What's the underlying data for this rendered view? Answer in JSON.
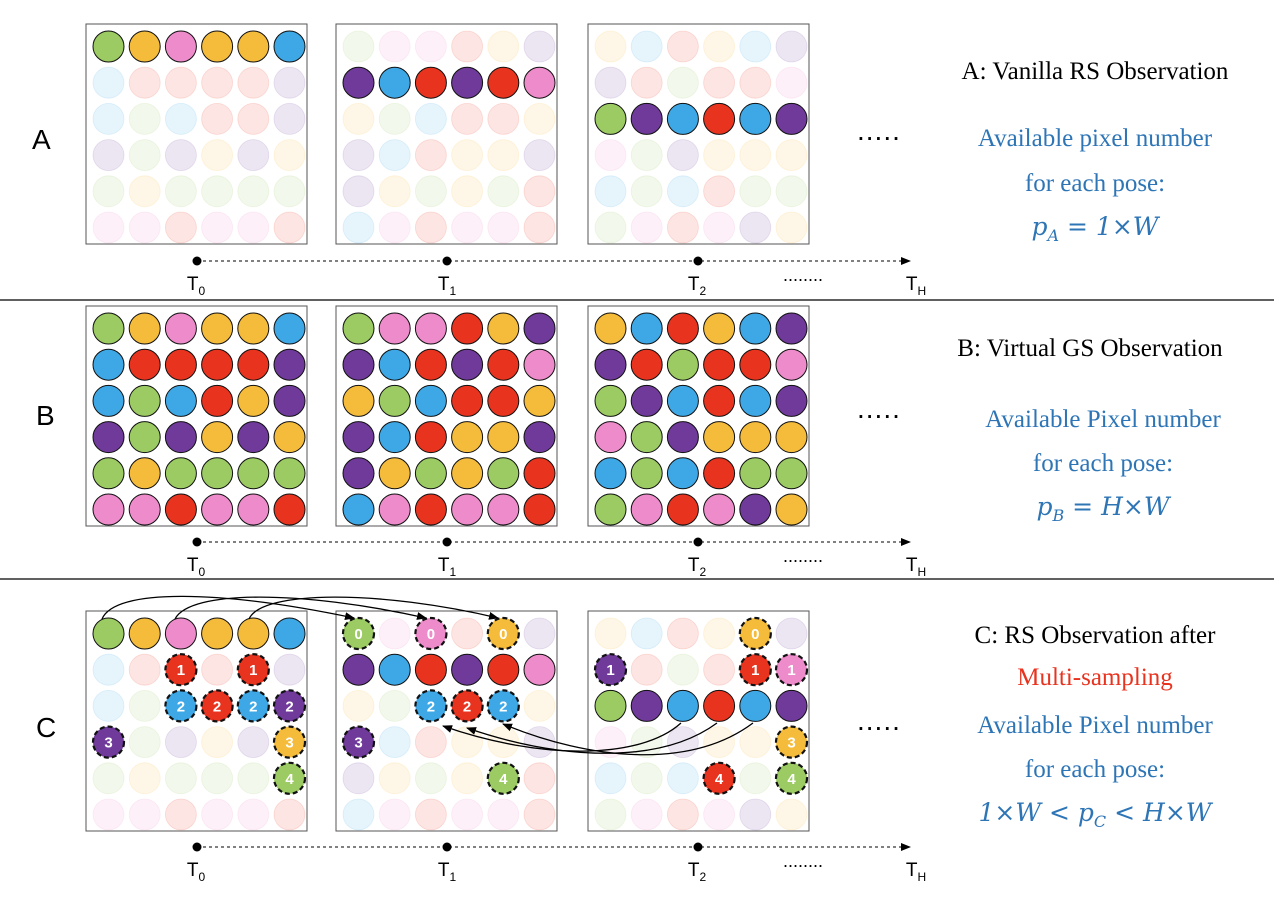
{
  "colors": {
    "green": "#9bcb62",
    "yellow": "#f5bc3c",
    "pink": "#ee8ccb",
    "blue": "#3ea8e6",
    "red": "#e8331f",
    "purple": "#6f3a9a",
    "text_blue": "#2e75b6",
    "text_red": "#e8331f"
  },
  "continuation": ".....",
  "timeline": {
    "labels": [
      "T0",
      "T1",
      "T2",
      "TH"
    ],
    "ellipsis": "........"
  },
  "rows": [
    {
      "letter": "A",
      "title": "A: Vanilla RS Observation",
      "info_lines": [
        "Available pixel number",
        "for each pose:"
      ],
      "formula": "p_A = 1×W",
      "grids": [
        [
          [
            "G",
            "Y",
            "P",
            "Y",
            "Y",
            "B"
          ],
          [
            "b",
            "r",
            "r",
            "r",
            "r",
            "v"
          ],
          [
            "b",
            "g",
            "b",
            "r",
            "r",
            "v"
          ],
          [
            "v",
            "g",
            "v",
            "y",
            "v",
            "y"
          ],
          [
            "g",
            "y",
            "g",
            "g",
            "g",
            "g"
          ],
          [
            "p",
            "p",
            "r",
            "p",
            "p",
            "r"
          ]
        ],
        [
          [
            "g",
            "p",
            "p",
            "r",
            "y",
            "v"
          ],
          [
            "V",
            "B",
            "R",
            "V",
            "R",
            "P"
          ],
          [
            "y",
            "g",
            "b",
            "r",
            "r",
            "y"
          ],
          [
            "v",
            "b",
            "r",
            "y",
            "y",
            "v"
          ],
          [
            "v",
            "y",
            "g",
            "y",
            "g",
            "r"
          ],
          [
            "b",
            "p",
            "r",
            "p",
            "p",
            "r"
          ]
        ],
        [
          [
            "y",
            "b",
            "r",
            "y",
            "b",
            "v"
          ],
          [
            "v",
            "r",
            "g",
            "r",
            "r",
            "p"
          ],
          [
            "G",
            "V",
            "B",
            "R",
            "B",
            "V"
          ],
          [
            "p",
            "g",
            "v",
            "y",
            "y",
            "y"
          ],
          [
            "b",
            "g",
            "b",
            "r",
            "g",
            "g"
          ],
          [
            "g",
            "p",
            "r",
            "p",
            "v",
            "y"
          ]
        ]
      ]
    },
    {
      "letter": "B",
      "title": "B: Virtual GS Observation",
      "info_lines": [
        "Available Pixel number",
        "for each pose:"
      ],
      "formula": "p_B = H×W",
      "grids": [
        [
          [
            "G",
            "Y",
            "P",
            "Y",
            "Y",
            "B"
          ],
          [
            "B",
            "R",
            "R",
            "R",
            "R",
            "V"
          ],
          [
            "B",
            "G",
            "B",
            "R",
            "Y",
            "V"
          ],
          [
            "V",
            "G",
            "V",
            "Y",
            "V",
            "Y"
          ],
          [
            "G",
            "Y",
            "G",
            "G",
            "G",
            "G"
          ],
          [
            "P",
            "P",
            "R",
            "P",
            "P",
            "R"
          ]
        ],
        [
          [
            "G",
            "P",
            "P",
            "R",
            "Y",
            "V"
          ],
          [
            "V",
            "B",
            "R",
            "V",
            "R",
            "P"
          ],
          [
            "Y",
            "G",
            "B",
            "R",
            "R",
            "Y"
          ],
          [
            "V",
            "B",
            "R",
            "Y",
            "Y",
            "V"
          ],
          [
            "V",
            "Y",
            "G",
            "Y",
            "G",
            "R"
          ],
          [
            "B",
            "P",
            "R",
            "P",
            "P",
            "R"
          ]
        ],
        [
          [
            "Y",
            "B",
            "R",
            "Y",
            "B",
            "V"
          ],
          [
            "V",
            "R",
            "G",
            "R",
            "R",
            "P"
          ],
          [
            "G",
            "V",
            "B",
            "R",
            "B",
            "V"
          ],
          [
            "P",
            "G",
            "V",
            "Y",
            "Y",
            "Y"
          ],
          [
            "B",
            "G",
            "B",
            "R",
            "G",
            "G"
          ],
          [
            "G",
            "P",
            "R",
            "P",
            "V",
            "Y"
          ]
        ]
      ]
    },
    {
      "letter": "C",
      "title": "C: RS Observation after",
      "highlight": "Multi-sampling",
      "info_lines": [
        "Available Pixel number",
        "for each pose:"
      ],
      "formula": "1×W < p_C < H×W",
      "grids": [
        [
          [
            "G",
            "Y",
            "P",
            "Y",
            "Y",
            "B"
          ],
          [
            "b",
            "r",
            "R1",
            "r",
            "R1",
            "v"
          ],
          [
            "b",
            "g",
            "B2",
            "R2",
            "B2",
            "V2"
          ],
          [
            "V3",
            "g",
            "v",
            "y",
            "v",
            "Y3"
          ],
          [
            "g",
            "y",
            "g",
            "g",
            "g",
            "G4"
          ],
          [
            "p",
            "p",
            "r",
            "p",
            "p",
            "r"
          ]
        ],
        [
          [
            "G0",
            "p",
            "P0",
            "r",
            "Y0",
            "v"
          ],
          [
            "V",
            "B",
            "R",
            "V",
            "R",
            "P"
          ],
          [
            "y",
            "g",
            "B2",
            "R2",
            "B2",
            "y"
          ],
          [
            "V3",
            "b",
            "r",
            "y",
            "y",
            "v"
          ],
          [
            "v",
            "y",
            "g",
            "y",
            "G4",
            "r"
          ],
          [
            "b",
            "p",
            "r",
            "p",
            "p",
            "r"
          ]
        ],
        [
          [
            "y",
            "b",
            "r",
            "y",
            "Y0",
            "v"
          ],
          [
            "V1",
            "r",
            "g",
            "r",
            "R1",
            "P1"
          ],
          [
            "G",
            "V",
            "B",
            "R",
            "B",
            "V"
          ],
          [
            "p",
            "g",
            "v",
            "y",
            "y",
            "Y3"
          ],
          [
            "b",
            "g",
            "b",
            "R4",
            "g",
            "G4"
          ],
          [
            "g",
            "p",
            "r",
            "p",
            "v",
            "y"
          ]
        ]
      ]
    }
  ]
}
